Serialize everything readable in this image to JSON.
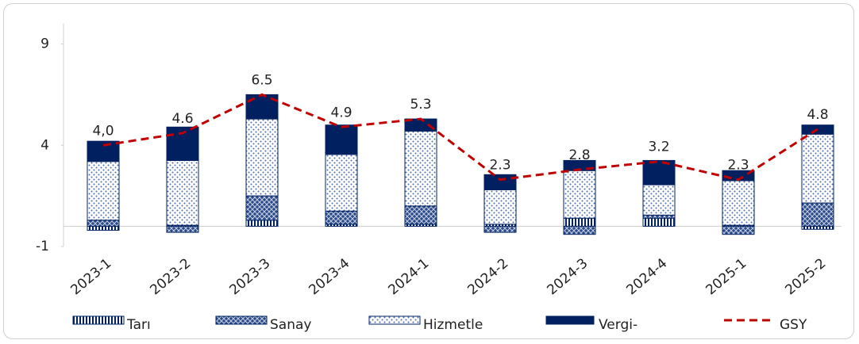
{
  "chart_data": {
    "type": "stacked-bar-line",
    "categories": [
      "2023-1",
      "2023-2",
      "2023-3",
      "2023-4",
      "2024-1",
      "2024-2",
      "2024-3",
      "2024-4",
      "2025-1",
      "2025-2"
    ],
    "series": [
      {
        "name": "Tarı",
        "color": "#002060",
        "values": [
          -0.2,
          0.05,
          0.3,
          0.1,
          0.1,
          0.1,
          0.4,
          0.4,
          0.05,
          -0.15
        ]
      },
      {
        "name": "Sanay",
        "color": "#002060",
        "values": [
          0.3,
          -0.3,
          1.2,
          0.65,
          0.9,
          -0.3,
          -0.4,
          0.15,
          -0.4,
          1.15
        ]
      },
      {
        "name": "Hizmetle",
        "color": "#002060",
        "values": [
          2.9,
          3.2,
          3.8,
          2.8,
          3.7,
          1.7,
          2.35,
          1.5,
          2.2,
          3.4
        ]
      },
      {
        "name": "Vergi-",
        "color": "#002060",
        "values": [
          1.0,
          1.65,
          1.2,
          1.45,
          0.6,
          0.75,
          0.5,
          1.2,
          0.5,
          0.45
        ]
      }
    ],
    "line": {
      "name": "GSY",
      "color": "#c00000",
      "values": [
        4.0,
        4.6,
        6.5,
        4.9,
        5.3,
        2.3,
        2.8,
        3.2,
        2.3,
        4.8
      ],
      "value_labels": [
        "4,0",
        "4.6",
        "6.5",
        "4.9",
        "5.3",
        "2.3",
        "2.8",
        "3.2",
        "2.3",
        "4.8"
      ]
    },
    "ylim": [
      -1,
      10
    ],
    "yticks": [
      -1,
      4,
      9
    ]
  }
}
